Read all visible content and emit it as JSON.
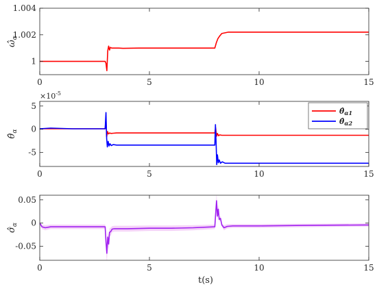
{
  "xlabel": "t(s)",
  "chart_data": [
    {
      "type": "line",
      "ylabel": "ω̂α",
      "xlim": [
        0,
        15
      ],
      "ylim": [
        0.999,
        1.004
      ],
      "xticks": [
        0,
        5,
        10,
        15
      ],
      "xtick_labels": [
        "0",
        "5",
        "10",
        "15"
      ],
      "yticks": [
        1,
        1.002,
        1.004
      ],
      "ytick_labels": [
        "1",
        "1.002",
        "1.004"
      ],
      "grid": false,
      "legend": "none",
      "series": [
        {
          "color": "#ff0000",
          "x": [
            0,
            2.98,
            3.02,
            3.06,
            3.1,
            3.14,
            3.18,
            3.22,
            3.28,
            3.35,
            3.45,
            3.6,
            3.8,
            4.5,
            6,
            7.98,
            8.05,
            8.12,
            8.2,
            8.3,
            8.45,
            8.6,
            9,
            10,
            12,
            15
          ],
          "y": [
            1.0,
            1.0,
            0.99985,
            0.9993,
            1.0008,
            1.00115,
            1.00085,
            1.00105,
            1.001,
            1.001,
            1.001,
            1.001,
            1.00098,
            1.001,
            1.001,
            1.001,
            1.0014,
            1.0017,
            1.0019,
            1.0021,
            1.00215,
            1.0022,
            1.0022,
            1.0022,
            1.0022,
            1.0022
          ]
        }
      ]
    },
    {
      "type": "line",
      "ylabel": "θ̂α",
      "xlim": [
        0,
        15
      ],
      "ylim": [
        -8,
        6
      ],
      "xticks": [
        0,
        5,
        10,
        15
      ],
      "xtick_labels": [
        "0",
        "5",
        "10",
        "15"
      ],
      "yticks": [
        -5,
        0,
        5
      ],
      "ytick_labels": [
        "-5",
        "0",
        "5"
      ],
      "y_multiplier_base": "×10",
      "y_multiplier_exp": "-5",
      "grid": false,
      "legend": "top-right",
      "series": [
        {
          "name_base": "θ̂",
          "name_sub": "α1",
          "color": "#ff0000",
          "x": [
            0,
            2.98,
            3.02,
            3.05,
            3.09,
            3.13,
            3.18,
            3.25,
            3.35,
            3.5,
            4,
            6,
            7.98,
            8.02,
            8.06,
            8.1,
            8.15,
            8.2,
            8.3,
            8.5,
            9,
            12,
            15
          ],
          "y": [
            0.1,
            0.1,
            2.0,
            -1.6,
            -0.5,
            -1.0,
            -0.8,
            -0.9,
            -0.85,
            -0.8,
            -0.8,
            -0.8,
            -0.8,
            0.3,
            -1.5,
            -0.9,
            -1.4,
            -1.2,
            -1.3,
            -1.3,
            -1.3,
            -1.3,
            -1.3
          ]
        },
        {
          "name_base": "θ̂",
          "name_sub": "α2",
          "color": "#0000ff",
          "x": [
            0,
            0.5,
            1.5,
            2.98,
            3.02,
            3.05,
            3.08,
            3.12,
            3.16,
            3.2,
            3.26,
            3.35,
            3.5,
            3.8,
            5,
            7.98,
            8.01,
            8.04,
            8.07,
            8.1,
            8.14,
            8.18,
            8.24,
            8.32,
            8.45,
            8.7,
            10,
            15
          ],
          "y": [
            0.1,
            0.25,
            0.1,
            0.1,
            3.6,
            -2.0,
            -3.8,
            -2.6,
            -3.6,
            -3.1,
            -3.5,
            -3.3,
            -3.4,
            -3.4,
            -3.4,
            -3.4,
            1.0,
            -3.0,
            -7.6,
            -5.5,
            -7.2,
            -6.6,
            -7.3,
            -7.0,
            -7.3,
            -7.3,
            -7.3,
            -7.3
          ]
        }
      ]
    },
    {
      "type": "line",
      "ylabel": "σ̂α",
      "xlim": [
        0,
        15
      ],
      "ylim": [
        -0.08,
        0.06
      ],
      "xticks": [
        0,
        5,
        10,
        15
      ],
      "xtick_labels": [
        "0",
        "5",
        "10",
        "15"
      ],
      "yticks": [
        -0.05,
        0,
        0.05
      ],
      "ytick_labels": [
        "-0.05",
        "0",
        "0.05"
      ],
      "grid": false,
      "legend": "none",
      "band_color": "#f3c8f6",
      "series": [
        {
          "color": "#a020f0",
          "x": [
            0,
            0.1,
            0.25,
            0.5,
            1.0,
            2.0,
            2.98,
            3.02,
            3.06,
            3.1,
            3.14,
            3.18,
            3.24,
            3.3,
            3.4,
            3.6,
            4,
            5,
            6,
            7,
            7.98,
            8.02,
            8.06,
            8.1,
            8.14,
            8.18,
            8.24,
            8.3,
            8.4,
            8.55,
            8.8,
            9.5,
            10,
            12,
            15
          ],
          "y": [
            0.0,
            -0.008,
            -0.01,
            -0.008,
            -0.008,
            -0.008,
            -0.008,
            -0.04,
            -0.065,
            -0.03,
            -0.045,
            -0.02,
            -0.018,
            -0.013,
            -0.012,
            -0.012,
            -0.012,
            -0.011,
            -0.011,
            -0.01,
            -0.008,
            0.02,
            0.048,
            0.015,
            0.03,
            0.008,
            0.01,
            -0.004,
            -0.01,
            -0.007,
            -0.006,
            -0.006,
            -0.006,
            -0.005,
            -0.004
          ]
        }
      ]
    }
  ]
}
